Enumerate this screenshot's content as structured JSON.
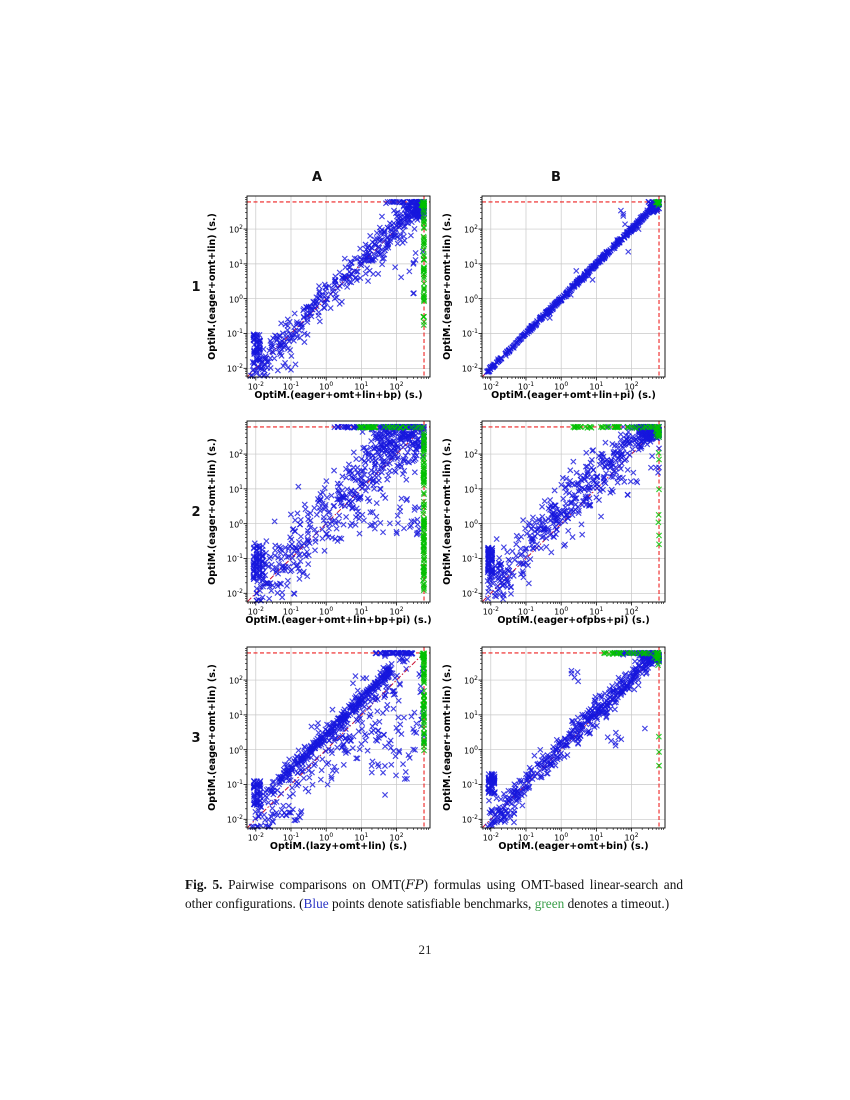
{
  "page": {
    "number": "21"
  },
  "figure": {
    "column_headers": [
      {
        "label": "A"
      },
      {
        "label": "B"
      }
    ],
    "row_headers": [
      {
        "label": "1"
      },
      {
        "label": "2"
      },
      {
        "label": "3"
      }
    ],
    "caption": {
      "segments": [
        {
          "text": "Fig. 5.",
          "style": "bold"
        },
        {
          "text": " Pairwise comparisons on OMT(",
          "style": ""
        },
        {
          "text": "FP",
          "style": "script"
        },
        {
          "text": ") formulas using OMT-based linear-search and other configurations. (",
          "style": ""
        },
        {
          "text": "Blue",
          "style": "blue"
        },
        {
          "text": " points denote satisfiable benchmarks, ",
          "style": ""
        },
        {
          "text": "green",
          "style": "green"
        },
        {
          "text": " denotes a timeout.)",
          "style": ""
        }
      ]
    },
    "colors": {
      "blue": "#1717dd",
      "green": "#00c000",
      "timeout_line": "#ee2222",
      "diagonal_line": "#cc1133",
      "grid": "#c8c8c8",
      "axis": "#000000",
      "caption_blue": "#2b35c5",
      "caption_green": "#3da04c"
    },
    "axis": {
      "scale": "log",
      "log_range": [
        -2.25,
        2.95
      ],
      "timeout_log": 2.78,
      "tick_base": "10",
      "tick_exponents": [
        "-2",
        "-1",
        "0",
        "1",
        "2"
      ],
      "units": "seconds"
    }
  },
  "chart_data": [
    {
      "type": "scatter",
      "id": "1A",
      "row": "1",
      "col": "A",
      "xlabel": "OptiM.(eager+omt+lin+bp) (s.)",
      "ylabel": "OptiM.(eager+omt+lin) (s.)",
      "xlim_log": [
        -2.25,
        2.95
      ],
      "ylim_log": [
        -2.25,
        2.95
      ],
      "grid": true,
      "series": [
        {
          "name": "satisfiable",
          "color": "blue",
          "marker": "x"
        },
        {
          "name": "timeout",
          "color": "green",
          "marker": "x"
        }
      ],
      "clusters": [
        {
          "kind": "diag",
          "color": "blue",
          "n": 380,
          "x0": -2.15,
          "x1": 2.7,
          "sigma": 0.27,
          "offset": 0.02,
          "skew": 0.8
        },
        {
          "kind": "blob",
          "color": "blue",
          "n": 90,
          "cx": 2.62,
          "cy": 2.62,
          "sx": 0.16,
          "sy": 0.16
        },
        {
          "kind": "hline",
          "color": "blue",
          "n": 22,
          "y": 2.78,
          "x0": 1.6,
          "x1": 2.76,
          "jy": 0.02
        },
        {
          "kind": "vline",
          "color": "green",
          "n": 55,
          "x": 2.78,
          "y0": -0.9,
          "y1": 2.76,
          "jx": 0.012,
          "skew": 1
        },
        {
          "kind": "blob",
          "color": "green",
          "n": 16,
          "cx": 2.76,
          "cy": 2.7,
          "sx": 0.03,
          "sy": 0.08
        },
        {
          "kind": "cols",
          "color": "blue",
          "n": 54,
          "xs": [
            -2.05,
            -1.97,
            -1.89
          ],
          "y0": -1.78,
          "y1": -1.02
        },
        {
          "kind": "box",
          "color": "blue",
          "n": 12,
          "x0": -2.1,
          "x1": -0.6,
          "y0": -2.1,
          "y1": -1.82
        },
        {
          "kind": "blob",
          "color": "blue",
          "n": 12,
          "cx": 2.25,
          "cy": 0.7,
          "sx": 0.3,
          "sy": 0.5
        }
      ]
    },
    {
      "type": "scatter",
      "id": "1B",
      "row": "1",
      "col": "B",
      "xlabel": "OptiM.(eager+omt+lin+pi) (s.)",
      "ylabel": "OptiM.(eager+omt+lin) (s.)",
      "xlim_log": [
        -2.25,
        2.95
      ],
      "ylim_log": [
        -2.25,
        2.95
      ],
      "grid": true,
      "series": [
        {
          "name": "satisfiable",
          "color": "blue",
          "marker": "x"
        },
        {
          "name": "timeout",
          "color": "green",
          "marker": "x"
        }
      ],
      "clusters": [
        {
          "kind": "diag",
          "color": "blue",
          "n": 500,
          "x0": -2.12,
          "x1": 2.72,
          "sigma": 0.03,
          "offset": 0,
          "skew": 0.9
        },
        {
          "kind": "diag",
          "color": "blue",
          "n": 14,
          "x0": -0.8,
          "x1": 2.3,
          "sigma": 0.28,
          "offset": 0,
          "skew": 1
        },
        {
          "kind": "blob",
          "color": "blue",
          "n": 70,
          "cx": 2.68,
          "cy": 2.68,
          "sx": 0.1,
          "sy": 0.1
        },
        {
          "kind": "blob",
          "color": "green",
          "n": 12,
          "cx": 2.76,
          "cy": 2.76,
          "sx": 0.04,
          "sy": 0.04
        },
        {
          "kind": "blob",
          "color": "blue",
          "n": 3,
          "cx": 1.78,
          "cy": 2.45,
          "sx": 0.06,
          "sy": 0.1
        }
      ]
    },
    {
      "type": "scatter",
      "id": "2A",
      "row": "2",
      "col": "A",
      "xlabel": "OptiM.(eager+omt+lin+bp+pi) (s.)",
      "ylabel": "OptiM.(eager+omt+lin) (s.)",
      "xlim_log": [
        -2.25,
        2.95
      ],
      "ylim_log": [
        -2.25,
        2.95
      ],
      "grid": true,
      "series": [
        {
          "name": "satisfiable",
          "color": "blue",
          "marker": "x"
        },
        {
          "name": "timeout",
          "color": "green",
          "marker": "x"
        }
      ],
      "clusters": [
        {
          "kind": "diag",
          "color": "blue",
          "n": 400,
          "x0": -2.1,
          "x1": 2.65,
          "sigma": 0.5,
          "offset": 0.3,
          "skew": 0.75
        },
        {
          "kind": "blob",
          "color": "blue",
          "n": 130,
          "cx": 2.15,
          "cy": 2.4,
          "sx": 0.55,
          "sy": 0.3
        },
        {
          "kind": "hline",
          "color": "blue",
          "n": 70,
          "y": 2.78,
          "x0": 0.2,
          "x1": 2.76,
          "jy": 0.015
        },
        {
          "kind": "vline",
          "color": "green",
          "n": 115,
          "x": 2.78,
          "y0": -2.0,
          "y1": 2.77,
          "jx": 0.012,
          "skew": 1
        },
        {
          "kind": "hline",
          "color": "green",
          "n": 38,
          "y": 2.78,
          "x0": 0.9,
          "x1": 2.76,
          "jy": 0.015
        },
        {
          "kind": "cols",
          "color": "blue",
          "n": 72,
          "xs": [
            -2.06,
            -1.98,
            -1.9,
            -1.81
          ],
          "y0": -1.6,
          "y1": -0.62
        },
        {
          "kind": "box",
          "color": "blue",
          "n": 46,
          "x0": 0.7,
          "x1": 2.65,
          "y0": -0.35,
          "y1": 0.85
        },
        {
          "kind": "box",
          "color": "blue",
          "n": 16,
          "x0": -2.12,
          "x1": -0.9,
          "y0": -2.12,
          "y1": -1.7
        },
        {
          "kind": "box",
          "color": "blue",
          "n": 20,
          "x0": -1.8,
          "x1": -0.3,
          "y0": -1.6,
          "y1": -0.4
        }
      ]
    },
    {
      "type": "scatter",
      "id": "2B",
      "row": "2",
      "col": "B",
      "xlabel": "OptiM.(eager+ofpbs+pi) (s.)",
      "ylabel": "OptiM.(eager+omt+lin) (s.)",
      "xlim_log": [
        -2.25,
        2.95
      ],
      "ylim_log": [
        -2.25,
        2.95
      ],
      "grid": true,
      "series": [
        {
          "name": "satisfiable",
          "color": "blue",
          "marker": "x"
        },
        {
          "name": "timeout",
          "color": "green",
          "marker": "x"
        }
      ],
      "clusters": [
        {
          "kind": "diag",
          "color": "blue",
          "n": 430,
          "x0": -2.1,
          "x1": 2.6,
          "sigma": 0.4,
          "offset": 0.32,
          "skew": 0.8
        },
        {
          "kind": "blob",
          "color": "blue",
          "n": 110,
          "cx": 2.55,
          "cy": 2.6,
          "sx": 0.2,
          "sy": 0.14
        },
        {
          "kind": "hline",
          "color": "green",
          "n": 45,
          "y": 2.78,
          "x0": 0.3,
          "x1": 2.76,
          "jy": 0.015
        },
        {
          "kind": "blob",
          "color": "green",
          "n": 18,
          "cx": 2.74,
          "cy": 2.66,
          "sx": 0.05,
          "sy": 0.1
        },
        {
          "kind": "vline",
          "color": "green",
          "n": 7,
          "x": 2.78,
          "y0": -0.6,
          "y1": 2.2,
          "jx": 0.012,
          "skew": 1
        },
        {
          "kind": "cols",
          "color": "blue",
          "n": 85,
          "xs": [
            -2.07,
            -1.97
          ],
          "y0": -1.45,
          "y1": -0.68
        },
        {
          "kind": "box",
          "color": "blue",
          "n": 22,
          "x0": -2.15,
          "x1": -1.4,
          "y0": -2.12,
          "y1": -1.5
        },
        {
          "kind": "blob",
          "color": "blue",
          "n": 10,
          "cx": 1.95,
          "cy": 1.05,
          "sx": 0.4,
          "sy": 0.3
        },
        {
          "kind": "blob",
          "color": "blue",
          "n": 2,
          "cx": 2.7,
          "cy": 1.55,
          "sx": 0.03,
          "sy": 0.06
        }
      ]
    },
    {
      "type": "scatter",
      "id": "3A",
      "row": "3",
      "col": "A",
      "xlabel": "OptiM.(lazy+omt+lin) (s.)",
      "ylabel": "OptiM.(eager+omt+lin) (s.)",
      "xlim_log": [
        -2.25,
        2.95
      ],
      "ylim_log": [
        -2.25,
        2.95
      ],
      "grid": true,
      "series": [
        {
          "name": "satisfiable",
          "color": "blue",
          "marker": "x"
        },
        {
          "name": "timeout",
          "color": "green",
          "marker": "x"
        }
      ],
      "clusters": [
        {
          "kind": "diag",
          "color": "blue",
          "n": 300,
          "x0": -1.75,
          "x1": 1.9,
          "sigma": 0.085,
          "offset": 0.45,
          "skew": 0.8
        },
        {
          "kind": "diag",
          "color": "blue",
          "n": 230,
          "x0": -2.12,
          "x1": 2.3,
          "sigma": 0.52,
          "offset": 0.08,
          "skew": 0.95
        },
        {
          "kind": "blob",
          "color": "blue",
          "n": 70,
          "cx": 1.62,
          "cy": 0.38,
          "sx": 0.72,
          "sy": 0.58
        },
        {
          "kind": "hline",
          "color": "blue",
          "n": 45,
          "y": 2.78,
          "x0": 1.35,
          "x1": 2.45,
          "jy": 0.02
        },
        {
          "kind": "vline",
          "color": "green",
          "n": 62,
          "x": 2.78,
          "y0": -0.1,
          "y1": 2.77,
          "jx": 0.012,
          "skew": 0.7
        },
        {
          "kind": "blob",
          "color": "green",
          "n": 14,
          "cx": 2.76,
          "cy": 2.72,
          "sx": 0.03,
          "sy": 0.06
        },
        {
          "kind": "vline",
          "color": "blue",
          "n": 10,
          "x": 2.7,
          "y0": 0.8,
          "y1": 2.4,
          "jx": 0.04,
          "skew": 1
        },
        {
          "kind": "cols",
          "color": "blue",
          "n": 55,
          "xs": [
            -2.05,
            -1.96,
            -1.88
          ],
          "y0": -1.62,
          "y1": -0.88
        },
        {
          "kind": "box",
          "color": "blue",
          "n": 20,
          "x0": -2.1,
          "x1": -0.7,
          "y0": -2.12,
          "y1": -1.68
        }
      ]
    },
    {
      "type": "scatter",
      "id": "3B",
      "row": "3",
      "col": "B",
      "xlabel": "OptiM.(eager+omt+bin) (s.)",
      "ylabel": "OptiM.(eager+omt+lin) (s.)",
      "xlim_log": [
        -2.25,
        2.95
      ],
      "ylim_log": [
        -2.25,
        2.95
      ],
      "grid": true,
      "series": [
        {
          "name": "satisfiable",
          "color": "blue",
          "marker": "x"
        },
        {
          "name": "timeout",
          "color": "green",
          "marker": "x"
        }
      ],
      "clusters": [
        {
          "kind": "diag",
          "color": "blue",
          "n": 430,
          "x0": -2.1,
          "x1": 2.68,
          "sigma": 0.2,
          "offset": 0.05,
          "skew": 0.8
        },
        {
          "kind": "blob",
          "color": "blue",
          "n": 95,
          "cx": 2.6,
          "cy": 2.64,
          "sx": 0.16,
          "sy": 0.1
        },
        {
          "kind": "hline",
          "color": "blue",
          "n": 28,
          "y": 2.78,
          "x0": 1.5,
          "x1": 2.76,
          "jy": 0.015
        },
        {
          "kind": "hline",
          "color": "green",
          "n": 32,
          "y": 2.78,
          "x0": 1.2,
          "x1": 2.76,
          "jy": 0.015
        },
        {
          "kind": "blob",
          "color": "green",
          "n": 14,
          "cx": 2.75,
          "cy": 2.68,
          "sx": 0.04,
          "sy": 0.08
        },
        {
          "kind": "vline",
          "color": "green",
          "n": 3,
          "x": 2.78,
          "y0": -0.65,
          "y1": 0.95,
          "jx": 0.01,
          "skew": 1
        },
        {
          "kind": "cols",
          "color": "blue",
          "n": 55,
          "xs": [
            -2.06,
            -1.97,
            -1.9
          ],
          "y0": -1.28,
          "y1": -0.68
        },
        {
          "kind": "box",
          "color": "blue",
          "n": 15,
          "x0": -2.05,
          "x1": -1.2,
          "y0": -2.1,
          "y1": -1.78
        },
        {
          "kind": "blob",
          "color": "blue",
          "n": 5,
          "cx": 0.45,
          "cy": 2.1,
          "sx": 0.1,
          "sy": 0.12
        },
        {
          "kind": "blob",
          "color": "blue",
          "n": 8,
          "cx": 1.55,
          "cy": 0.4,
          "sx": 0.3,
          "sy": 0.22
        }
      ]
    }
  ]
}
